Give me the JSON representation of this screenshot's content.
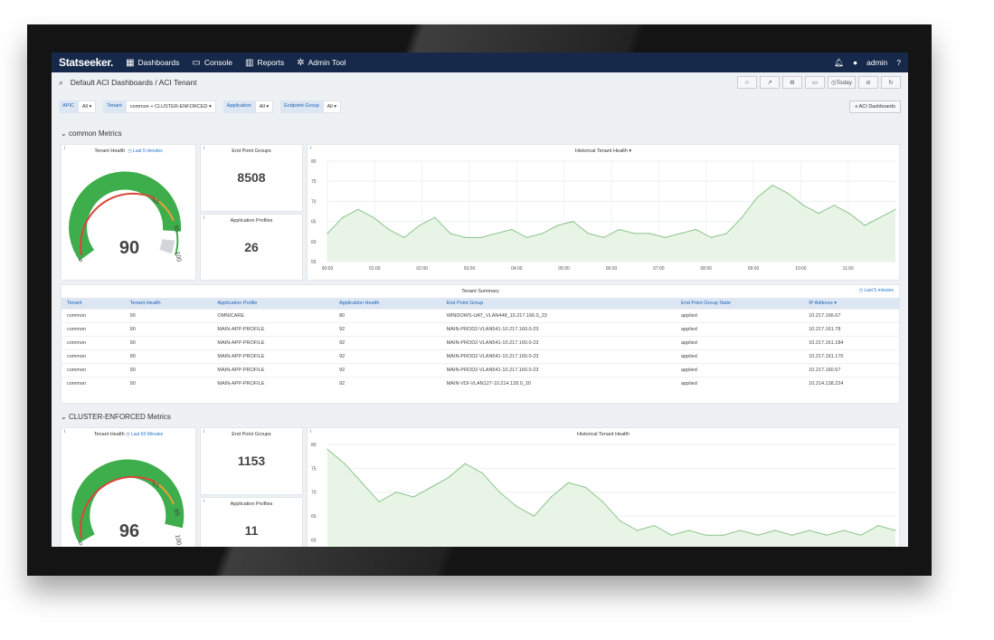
{
  "topbar": {
    "brand": "Statseeker.",
    "nav": [
      {
        "label": "Dashboards",
        "icon": "grid-icon"
      },
      {
        "label": "Console",
        "icon": "window-icon"
      },
      {
        "label": "Reports",
        "icon": "bar-chart-icon"
      },
      {
        "label": "Admin Tool",
        "icon": "gear-icon"
      }
    ],
    "user": "admin"
  },
  "toolbar": {
    "breadcrumb_prefix": "Default ACI Dashboards /",
    "breadcrumb_current": "ACI Tenant",
    "today_label": "Today"
  },
  "filters": [
    {
      "label": "APIC",
      "value": "All ▾"
    },
    {
      "label": "Tenant",
      "value": "common + CLUSTER-ENFORCED ▾"
    },
    {
      "label": "Application",
      "value": "All ▾"
    },
    {
      "label": "Endpoint Group",
      "value": "All ▾"
    }
  ],
  "aci_button": "ACI Dashboards",
  "sections": [
    {
      "title": "common Metrics",
      "health_title": "Tenant Health",
      "health_link": "Last 5 minutes",
      "health_value": "90",
      "gauge_ticks": [
        "0",
        "65",
        "85",
        "100"
      ],
      "epg_title": "End Point Groups",
      "epg_value": "8508",
      "apps_title": "Application Profiles",
      "apps_value": "26",
      "hist_title": "Historical Tenant Health ▾"
    },
    {
      "title": "CLUSTER-ENFORCED Metrics",
      "health_title": "Tenant Health",
      "health_link": "Last 60 Minutes",
      "health_value": "96",
      "gauge_ticks": [
        "0",
        "65",
        "85",
        "100"
      ],
      "epg_title": "End Point Groups",
      "epg_value": "1153",
      "apps_title": "Application Profiles",
      "apps_value": "11",
      "hist_title": "Historical Tenant Health"
    }
  ],
  "summary": {
    "title": "Tenant Summary",
    "link": "Last 5 minutes",
    "columns": [
      "Tenant",
      "Tenant Health",
      "Application Profile",
      "Application Health",
      "End Point Group",
      "End Point Group State",
      "IP Address ▾"
    ],
    "rows": [
      [
        "common",
        "90",
        "OMNICARE",
        "80",
        "WINDOWS-UAT_VLAN448_10.217.166.0_23",
        "applied",
        "10.217.166.67"
      ],
      [
        "common",
        "90",
        "MAIN-APP-PROFILE",
        "92",
        "MAIN-PROD2-VLAN541-10.217.160.0-23",
        "applied",
        "10.217.161.78"
      ],
      [
        "common",
        "90",
        "MAIN-APP-PROFILE",
        "92",
        "MAIN-PROD2-VLAN541-10.217.160.0-23",
        "applied",
        "10.217.161.184"
      ],
      [
        "common",
        "90",
        "MAIN-APP-PROFILE",
        "92",
        "MAIN-PROD2-VLAN541-10.217.160.0-23",
        "applied",
        "10.217.161.170"
      ],
      [
        "common",
        "90",
        "MAIN-APP-PROFILE",
        "92",
        "MAIN-PROD2-VLAN541-10.217.160.0-23",
        "applied",
        "10.217.160.67"
      ],
      [
        "common",
        "90",
        "MAIN-APP-PROFILE",
        "92",
        "MAIN-VDI-VLAN127-10.214.128.0_20",
        "applied",
        "10.214.138.224"
      ]
    ]
  },
  "chart_data": [
    {
      "type": "area",
      "title": "Historical Tenant Health ▾",
      "ylim": [
        55,
        80
      ],
      "yticks": [
        "80",
        "75",
        "70",
        "65",
        "60",
        "55"
      ],
      "xticks": [
        "00:00",
        "01:00",
        "02:00",
        "03:00",
        "04:00",
        "05:00",
        "06:00",
        "07:00",
        "08:00",
        "09:00",
        "10:00",
        "11:00"
      ],
      "values": [
        62,
        66,
        68,
        66,
        63,
        61,
        64,
        66,
        62,
        61,
        61,
        62,
        63,
        61,
        62,
        64,
        65,
        62,
        61,
        63,
        62,
        62,
        61,
        62,
        63,
        61,
        62,
        66,
        71,
        74,
        72,
        69,
        67,
        69,
        67,
        64,
        66,
        68
      ],
      "color": "#8bc48b"
    },
    {
      "type": "area",
      "title": "Historical Tenant Health",
      "ylim": [
        58,
        80
      ],
      "yticks": [
        "80",
        "75",
        "70",
        "65",
        "60"
      ],
      "values": [
        79,
        76,
        72,
        68,
        70,
        69,
        71,
        73,
        76,
        74,
        70,
        67,
        65,
        69,
        72,
        71,
        68,
        64,
        62,
        63,
        61,
        62,
        61,
        61,
        62,
        61,
        62,
        61,
        62,
        61,
        62,
        61,
        63,
        62
      ],
      "color": "#8bc48b"
    }
  ],
  "colors": {
    "topbar": "#16294a",
    "accent": "#1f63b5",
    "gauge_green": "#3ead4c",
    "gauge_red": "#d9463b"
  }
}
